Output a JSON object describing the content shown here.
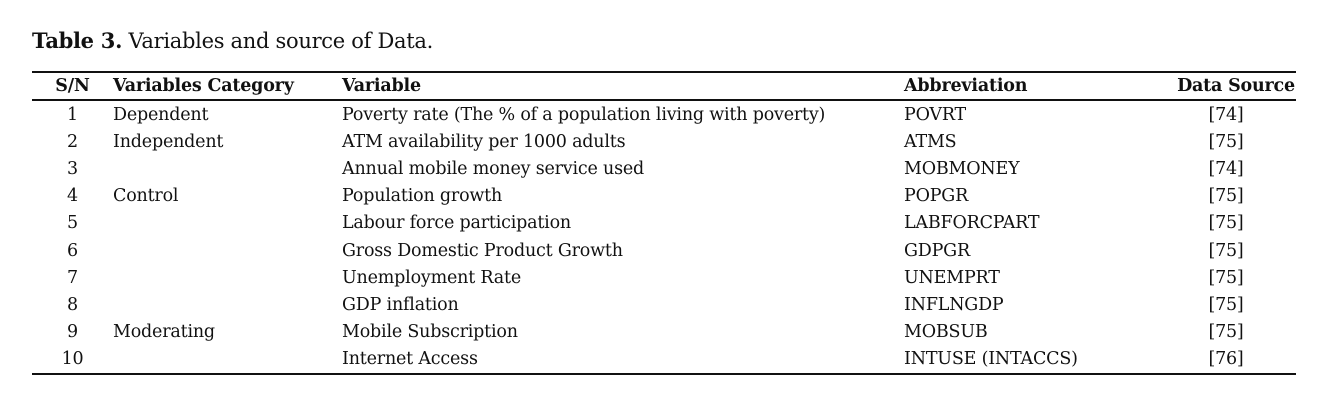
{
  "caption": {
    "label": "Table 3.",
    "text": "Variables and source of Data."
  },
  "table": {
    "headers": [
      "S/N",
      "Variables Category",
      "Variable",
      "Abbreviation",
      "Data Source"
    ],
    "rows": [
      [
        "1",
        "Dependent",
        "Poverty rate (The % of a population living with poverty)",
        "POVRT",
        "[74]"
      ],
      [
        "2",
        "Independent",
        "ATM availability per 1000 adults",
        "ATMS",
        "[75]"
      ],
      [
        "3",
        "",
        "Annual mobile money service used",
        "MOBMONEY",
        "[74]"
      ],
      [
        "4",
        "Control",
        "Population growth",
        "POPGR",
        "[75]"
      ],
      [
        "5",
        "",
        "Labour force participation",
        "LABFORCPART",
        "[75]"
      ],
      [
        "6",
        "",
        "Gross Domestic Product Growth",
        "GDPGR",
        "[75]"
      ],
      [
        "7",
        "",
        "Unemployment Rate",
        "UNEMPRT",
        "[75]"
      ],
      [
        "8",
        "",
        "GDP inflation",
        "INFLNGDP",
        "[75]"
      ],
      [
        "9",
        "Moderating",
        "Mobile Subscription",
        "MOBSUB",
        "[75]"
      ],
      [
        "10",
        "",
        "Internet Access",
        "INTUSE (INTACCS)",
        "[76]"
      ]
    ]
  }
}
